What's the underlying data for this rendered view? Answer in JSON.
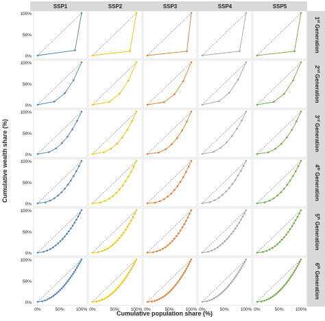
{
  "chart_data": {
    "type": "line",
    "xlabel": "Cumulative population share (%)",
    "ylabel": "Cumulative wealth share (%)",
    "columns": [
      "SSP1",
      "SSP2",
      "SSP3",
      "SSP4",
      "SSP5"
    ],
    "rows": [
      {
        "sup": "st",
        "num": "1",
        "word": " Generation"
      },
      {
        "sup": "nd",
        "num": "2",
        "word": " Generation"
      },
      {
        "sup": "rd",
        "num": "3",
        "word": " Generation"
      },
      {
        "sup": "th",
        "num": "4",
        "word": " Generation"
      },
      {
        "sup": "th",
        "num": "5",
        "word": " Generation"
      },
      {
        "sup": "th",
        "num": "6",
        "word": " Generation"
      }
    ],
    "y_ticks": [
      "0%",
      "50%",
      "100%"
    ],
    "x_ticks": [
      "0%",
      "50%",
      "100%"
    ],
    "xlim": [
      0,
      100
    ],
    "ylim": [
      0,
      100
    ],
    "colors": [
      "#4a7ebb",
      "#f2c200",
      "#e07b2a",
      "#a5a5a5",
      "#6aaa3a"
    ],
    "curve_exponents": [
      [
        4.0,
        4.0,
        4.0,
        4.0,
        4.0
      ],
      [
        2.7,
        2.8,
        2.9,
        2.6,
        2.8
      ],
      [
        2.3,
        2.4,
        2.5,
        2.2,
        2.4
      ],
      [
        2.2,
        2.3,
        2.4,
        2.1,
        2.2
      ],
      [
        2.0,
        2.2,
        2.3,
        2.0,
        2.1
      ],
      [
        1.9,
        2.0,
        2.1,
        1.9,
        2.0
      ]
    ],
    "point_counts": [
      2,
      4,
      7,
      12,
      18,
      26
    ],
    "first_gen_points": [
      {
        "x": [
          0,
          85,
          100
        ],
        "y": [
          0,
          12,
          100
        ]
      },
      {
        "x": [
          0,
          85,
          100
        ],
        "y": [
          0,
          10,
          100
        ]
      },
      {
        "x": [
          0,
          90,
          100
        ],
        "y": [
          0,
          10,
          100
        ]
      },
      {
        "x": [
          0,
          85,
          100
        ],
        "y": [
          0,
          10,
          100
        ]
      },
      {
        "x": [
          0,
          85,
          100
        ],
        "y": [
          0,
          10,
          100
        ]
      }
    ],
    "equality_line": {
      "style": "dashed",
      "x": [
        0,
        100
      ],
      "y": [
        0,
        100
      ]
    }
  }
}
